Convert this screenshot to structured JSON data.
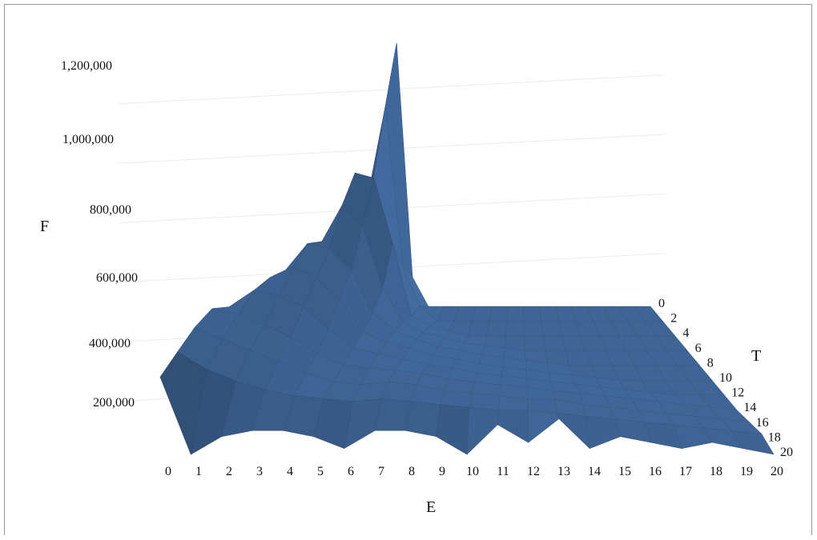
{
  "chart_data": {
    "type": "surface3d",
    "xlabel": "E",
    "ylabel": "F",
    "zlabel": "T",
    "x": [
      0,
      1,
      2,
      3,
      4,
      5,
      6,
      7,
      8,
      9,
      10,
      11,
      12,
      13,
      14,
      15,
      16,
      17,
      18,
      19,
      20
    ],
    "z": [
      0,
      2,
      4,
      6,
      8,
      10,
      12,
      14,
      16,
      18,
      20
    ],
    "ylim": [
      0,
      1200000
    ],
    "y_ticks": [
      200000,
      400000,
      600000,
      800000,
      1000000,
      1200000
    ],
    "y_tick_labels": [
      "200,000",
      "400,000",
      "600,000",
      "800,000",
      "1,000,000",
      "1,200,000"
    ],
    "x_tick_labels": [
      "0",
      "1",
      "2",
      "3",
      "4",
      "5",
      "6",
      "7",
      "8",
      "9",
      "10",
      "11",
      "12",
      "13",
      "14",
      "15",
      "16",
      "17",
      "18",
      "19",
      "20"
    ],
    "z_tick_labels": [
      "0",
      "2",
      "4",
      "6",
      "8",
      "10",
      "12",
      "14",
      "16",
      "18",
      "20"
    ],
    "grid": true,
    "surface_color": "#3f6596",
    "series": [
      {
        "t": 0,
        "values": [
          0,
          0,
          0,
          0,
          1080000,
          120000,
          0,
          0,
          0,
          0,
          0,
          0,
          0,
          0,
          0,
          0,
          0,
          0,
          0,
          0,
          0
        ]
      },
      {
        "t": 2,
        "values": [
          0,
          0,
          0,
          500000,
          860000,
          220000,
          60000,
          0,
          0,
          0,
          0,
          0,
          0,
          0,
          0,
          0,
          0,
          0,
          0,
          0,
          0
        ]
      },
      {
        "t": 4,
        "values": [
          0,
          0,
          260000,
          640000,
          620000,
          360000,
          80000,
          40000,
          20000,
          0,
          0,
          0,
          0,
          0,
          0,
          0,
          0,
          0,
          0,
          0,
          0
        ]
      },
      {
        "t": 6,
        "values": [
          0,
          260000,
          420000,
          560000,
          480000,
          240000,
          110000,
          70000,
          50000,
          30000,
          20000,
          10000,
          0,
          0,
          0,
          0,
          0,
          0,
          0,
          0,
          0
        ]
      },
      {
        "t": 8,
        "values": [
          120000,
          360000,
          460000,
          440000,
          360000,
          200000,
          130000,
          100000,
          70000,
          60000,
          40000,
          30000,
          20000,
          10000,
          0,
          0,
          0,
          0,
          0,
          0,
          0
        ]
      },
      {
        "t": 10,
        "values": [
          260000,
          380000,
          420000,
          380000,
          300000,
          180000,
          140000,
          120000,
          90000,
          80000,
          60000,
          50000,
          40000,
          30000,
          20000,
          10000,
          0,
          0,
          0,
          0,
          0
        ]
      },
      {
        "t": 12,
        "values": [
          320000,
          380000,
          360000,
          320000,
          240000,
          170000,
          150000,
          130000,
          110000,
          100000,
          80000,
          70000,
          60000,
          50000,
          40000,
          30000,
          20000,
          10000,
          0,
          0,
          0
        ]
      },
      {
        "t": 14,
        "values": [
          360000,
          340000,
          300000,
          260000,
          200000,
          160000,
          150000,
          140000,
          130000,
          110000,
          100000,
          90000,
          80000,
          70000,
          60000,
          50000,
          40000,
          30000,
          20000,
          10000,
          0
        ]
      },
      {
        "t": 16,
        "values": [
          340000,
          300000,
          260000,
          220000,
          180000,
          150000,
          140000,
          150000,
          140000,
          120000,
          110000,
          100000,
          90000,
          90000,
          70000,
          60000,
          50000,
          40000,
          30000,
          20000,
          10000
        ]
      },
      {
        "t": 18,
        "values": [
          300000,
          240000,
          200000,
          170000,
          150000,
          140000,
          130000,
          140000,
          130000,
          120000,
          110000,
          100000,
          100000,
          90000,
          80000,
          70000,
          60000,
          50000,
          40000,
          30000,
          20000
        ]
      },
      {
        "t": 20,
        "values": [
          260000,
          0,
          60000,
          80000,
          80000,
          60000,
          20000,
          80000,
          80000,
          60000,
          0,
          100000,
          40000,
          120000,
          20000,
          60000,
          40000,
          20000,
          40000,
          20000,
          0
        ]
      }
    ]
  }
}
